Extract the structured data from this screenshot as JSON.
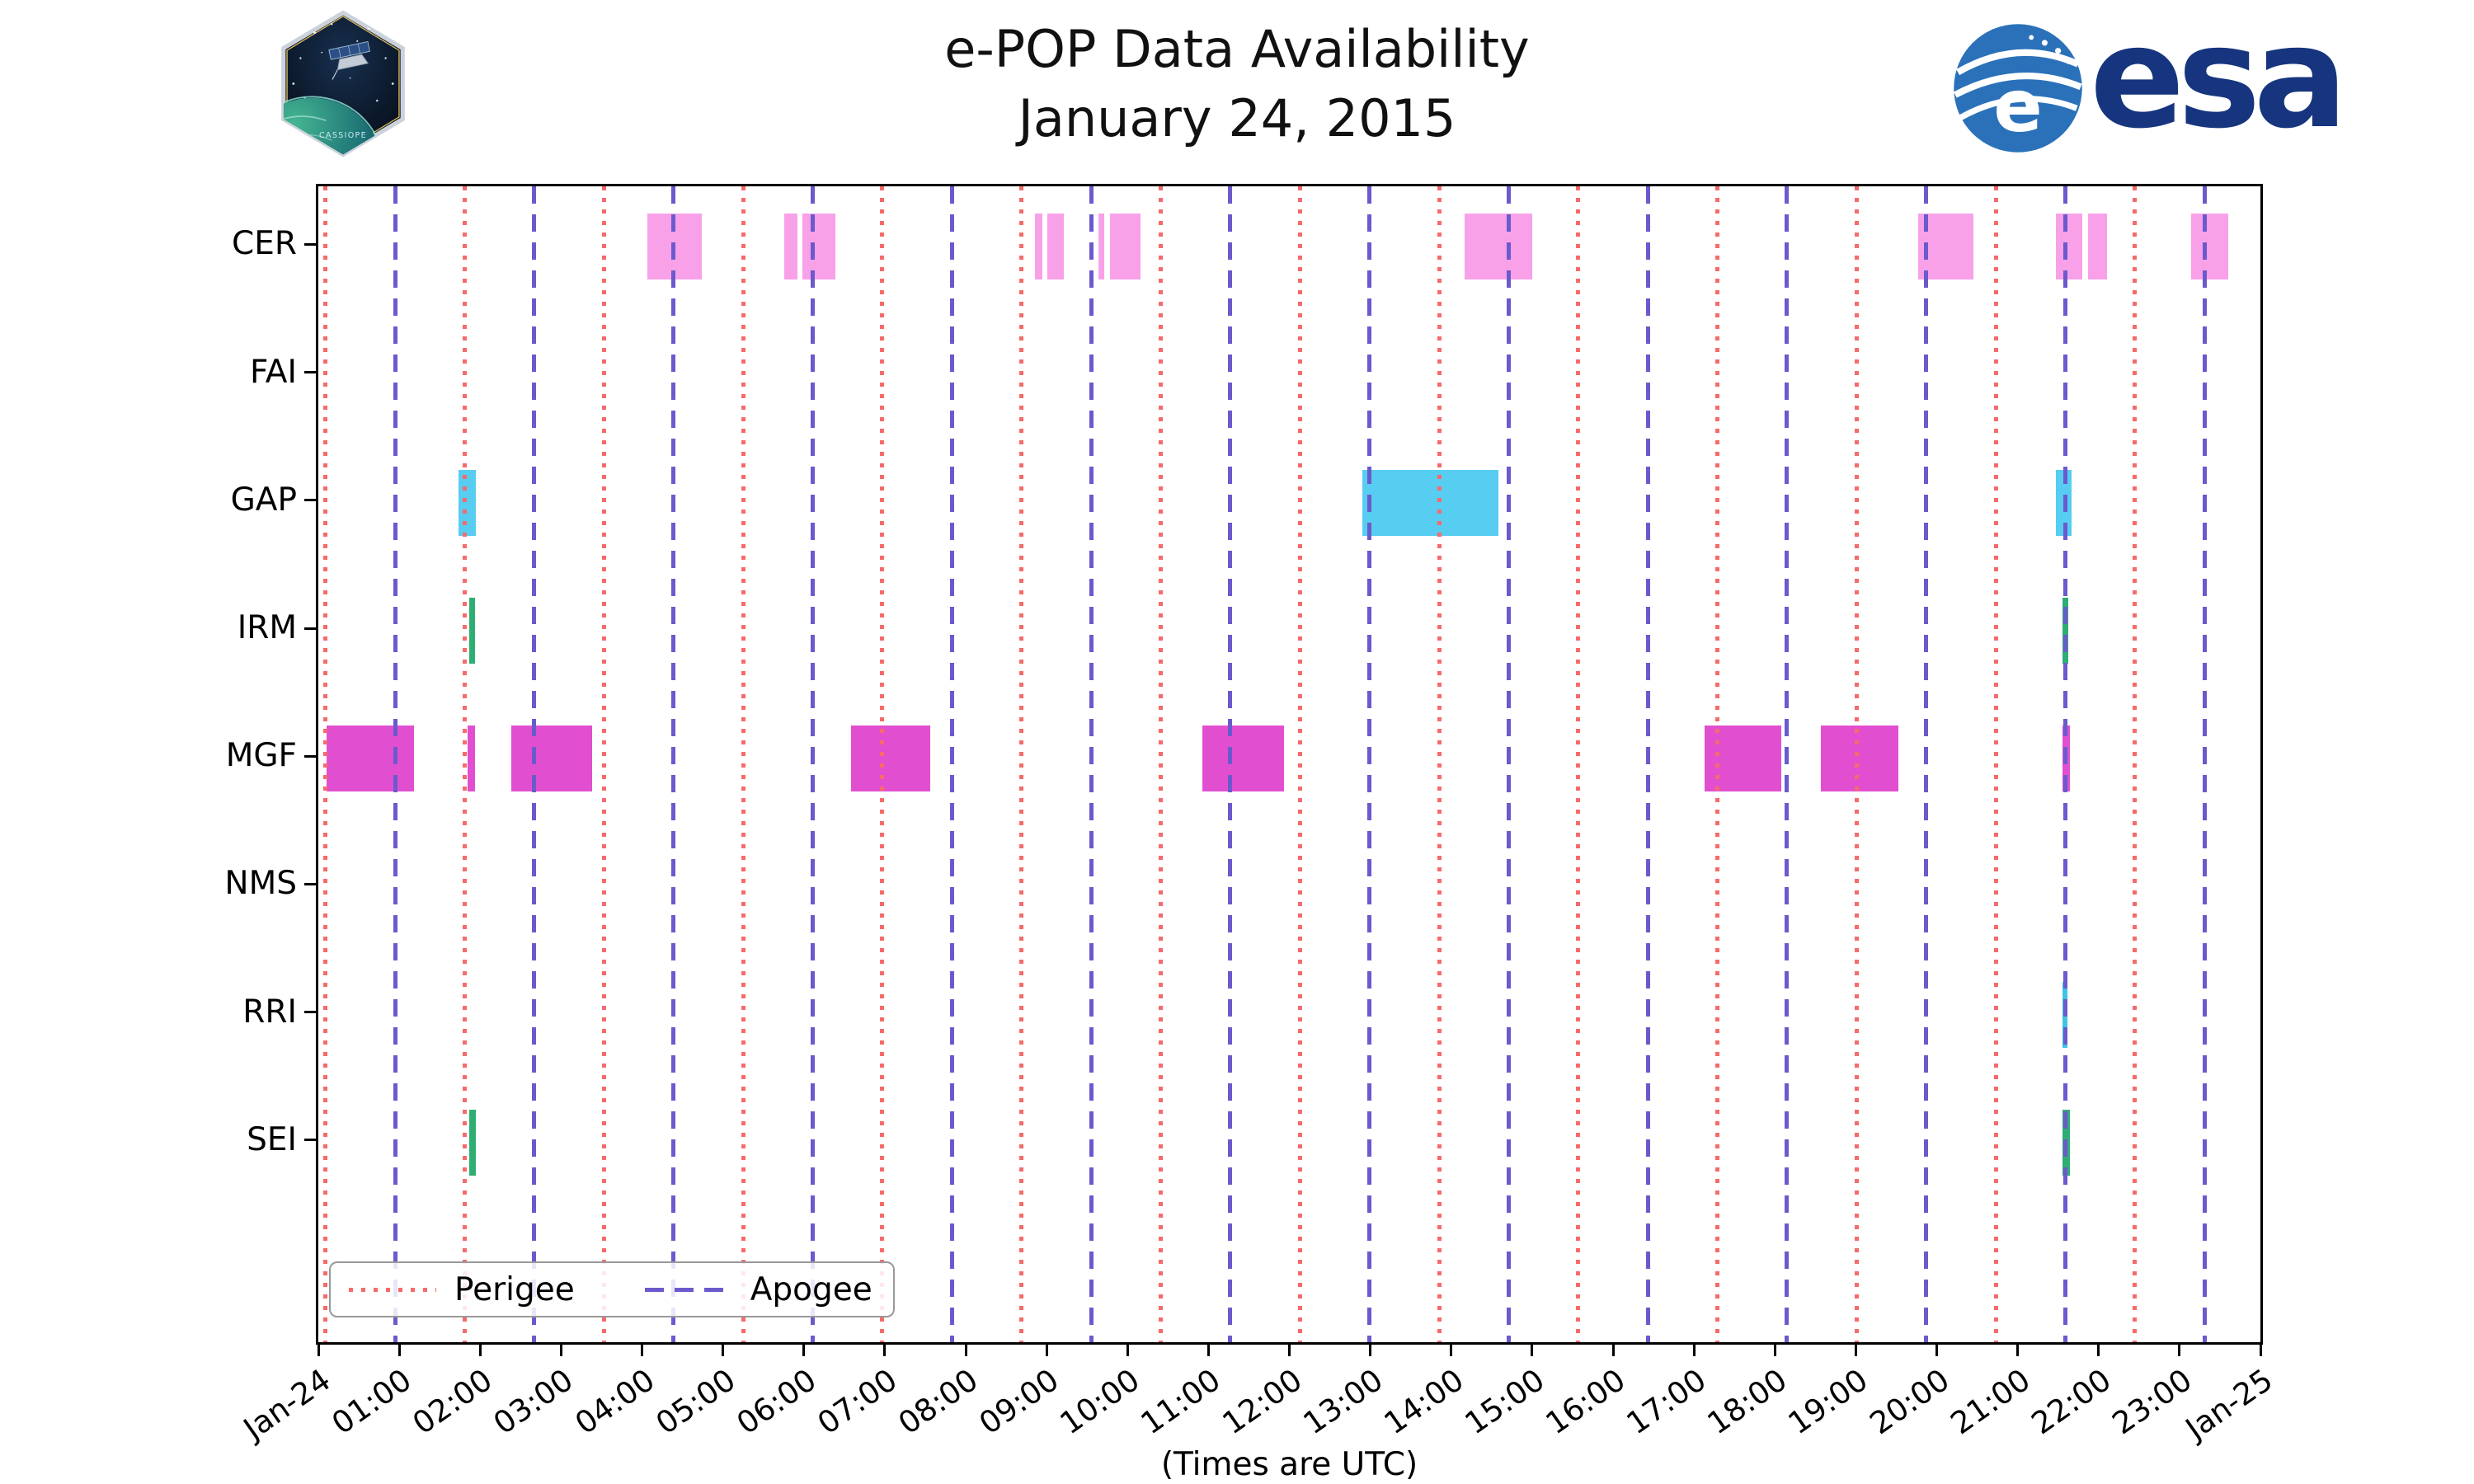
{
  "header": {
    "title": "e-POP Data Availability",
    "subtitle": "January 24, 2015"
  },
  "logos": {
    "esa_wordmark": "esa",
    "esa_emblem_letter": "e",
    "mission_patch_text": "CASSIOPE"
  },
  "chart_data": {
    "type": "availability-timeline",
    "title": "e-POP Data Availability",
    "subtitle": "January 24, 2015",
    "xlabel": "(Times are UTC)",
    "x_range_hours": [
      0,
      24
    ],
    "x_tick_labels": [
      "Jan-24",
      "01:00",
      "02:00",
      "03:00",
      "04:00",
      "05:00",
      "06:00",
      "07:00",
      "08:00",
      "09:00",
      "10:00",
      "11:00",
      "12:00",
      "13:00",
      "14:00",
      "15:00",
      "16:00",
      "17:00",
      "18:00",
      "19:00",
      "20:00",
      "21:00",
      "22:00",
      "23:00",
      "Jan-25"
    ],
    "rows": [
      "CER",
      "FAI",
      "GAP",
      "IRM",
      "MGF",
      "NMS",
      "RRI",
      "SEI"
    ],
    "row_colors": {
      "CER": "#f8a1e8",
      "GAP": "#57cdf1",
      "IRM": "#2fae73",
      "MGF": "#e14fd0",
      "RRI": "#3ec6e0",
      "SEI": "#2fae73"
    },
    "orbit_markers": {
      "perigee": {
        "label": "Perigee",
        "color": "#f76a6a",
        "line_style": "dotted",
        "hours": [
          0.09,
          1.81,
          3.53,
          5.25,
          6.97,
          8.69,
          10.41,
          12.13,
          13.85,
          15.57,
          17.29,
          19.01,
          20.73,
          22.45
        ]
      },
      "apogee": {
        "label": "Apogee",
        "color": "#6a5acd",
        "line_style": "dashed",
        "hours": [
          0.95,
          2.67,
          4.39,
          6.11,
          7.83,
          9.55,
          11.27,
          12.99,
          14.71,
          16.43,
          18.15,
          19.87,
          21.59,
          23.31
        ]
      }
    },
    "bars": [
      {
        "row": "CER",
        "start_h": 4.07,
        "end_h": 4.74
      },
      {
        "row": "CER",
        "start_h": 5.76,
        "end_h": 5.92
      },
      {
        "row": "CER",
        "start_h": 5.98,
        "end_h": 6.39
      },
      {
        "row": "CER",
        "start_h": 8.86,
        "end_h": 8.95
      },
      {
        "row": "CER",
        "start_h": 9.01,
        "end_h": 9.21
      },
      {
        "row": "CER",
        "start_h": 9.64,
        "end_h": 9.71
      },
      {
        "row": "CER",
        "start_h": 9.78,
        "end_h": 10.16
      },
      {
        "row": "CER",
        "start_h": 14.17,
        "end_h": 15.0
      },
      {
        "row": "CER",
        "start_h": 19.77,
        "end_h": 20.45
      },
      {
        "row": "CER",
        "start_h": 21.47,
        "end_h": 21.8
      },
      {
        "row": "CER",
        "start_h": 21.87,
        "end_h": 22.1
      },
      {
        "row": "CER",
        "start_h": 23.14,
        "end_h": 23.6
      },
      {
        "row": "GAP",
        "start_h": 1.73,
        "end_h": 1.95
      },
      {
        "row": "GAP",
        "start_h": 12.9,
        "end_h": 14.58
      },
      {
        "row": "GAP",
        "start_h": 21.47,
        "end_h": 21.67
      },
      {
        "row": "IRM",
        "start_h": 1.86,
        "end_h": 1.94
      },
      {
        "row": "IRM",
        "start_h": 21.55,
        "end_h": 21.63
      },
      {
        "row": "MGF",
        "start_h": 0.1,
        "end_h": 1.18
      },
      {
        "row": "MGF",
        "start_h": 1.84,
        "end_h": 1.94
      },
      {
        "row": "MGF",
        "start_h": 2.38,
        "end_h": 3.38
      },
      {
        "row": "MGF",
        "start_h": 6.58,
        "end_h": 7.56
      },
      {
        "row": "MGF",
        "start_h": 10.92,
        "end_h": 11.93
      },
      {
        "row": "MGF",
        "start_h": 17.13,
        "end_h": 18.08
      },
      {
        "row": "MGF",
        "start_h": 18.57,
        "end_h": 19.53
      },
      {
        "row": "MGF",
        "start_h": 21.55,
        "end_h": 21.65
      },
      {
        "row": "RRI",
        "start_h": 21.55,
        "end_h": 21.62
      },
      {
        "row": "SEI",
        "start_h": 1.86,
        "end_h": 1.95
      },
      {
        "row": "SEI",
        "start_h": 21.55,
        "end_h": 21.65
      }
    ],
    "legend": [
      {
        "label": "Perigee",
        "marker": "dotted-line",
        "color": "#f76a6a"
      },
      {
        "label": "Apogee",
        "marker": "dashed-line",
        "color": "#6a5acd"
      }
    ]
  }
}
